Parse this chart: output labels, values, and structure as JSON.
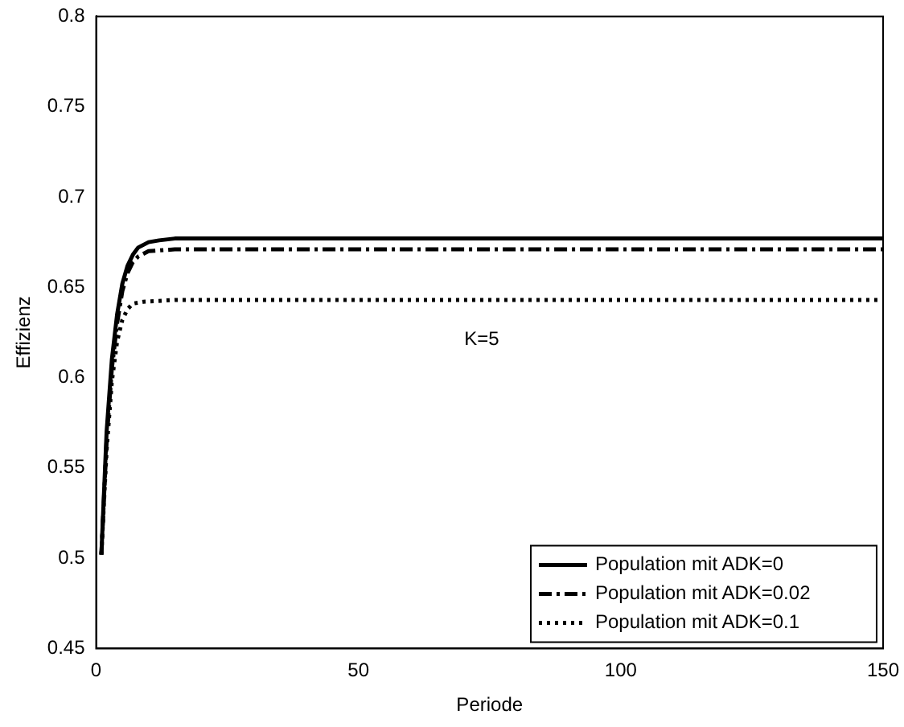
{
  "chart_data": {
    "type": "line",
    "xlabel": "Periode",
    "ylabel": "Effizienz",
    "xlim": [
      0,
      150
    ],
    "xticks": [
      0,
      50,
      100,
      150
    ],
    "ylim": [
      0.45,
      0.8
    ],
    "yticks": [
      0.45,
      0.5,
      0.55,
      0.6,
      0.65,
      0.7,
      0.75,
      0.8
    ],
    "grid": false,
    "legend": "bottom right",
    "marker": "none",
    "annotations": [
      "K=5"
    ],
    "series": [
      {
        "name": "Population mit ADK=0",
        "color": "#000000",
        "line_style": "solid",
        "x": [
          1,
          2,
          3,
          4,
          5,
          6,
          7,
          8,
          10,
          12,
          15,
          150
        ],
        "values": [
          0.502,
          0.57,
          0.61,
          0.635,
          0.652,
          0.662,
          0.668,
          0.672,
          0.675,
          0.676,
          0.677,
          0.677
        ]
      },
      {
        "name": "Population mit ADK=0.02",
        "color": "#000000",
        "line_style": "dashdot",
        "x": [
          1,
          2,
          3,
          4,
          5,
          6,
          7,
          8,
          10,
          15,
          150
        ],
        "values": [
          0.502,
          0.565,
          0.605,
          0.63,
          0.648,
          0.658,
          0.664,
          0.667,
          0.67,
          0.671,
          0.671
        ]
      },
      {
        "name": "Population mit ADK=0.1",
        "color": "#000000",
        "line_style": "dotted",
        "x": [
          1,
          2,
          3,
          4,
          5,
          6,
          7,
          9,
          15,
          150
        ],
        "values": [
          0.502,
          0.56,
          0.598,
          0.62,
          0.632,
          0.638,
          0.641,
          0.642,
          0.643,
          0.643
        ]
      }
    ]
  }
}
